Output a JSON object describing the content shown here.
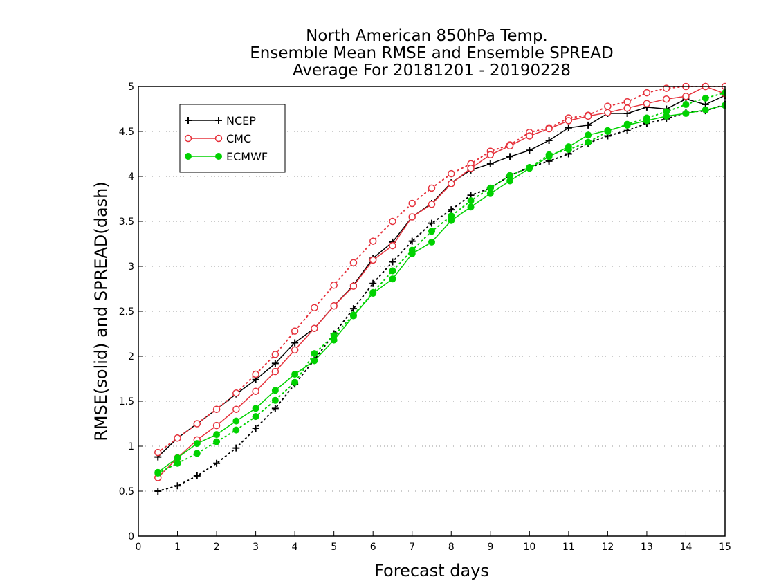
{
  "chart_data": {
    "type": "line",
    "title": [
      "North American 850hPa Temp.",
      "Ensemble Mean RMSE and Ensemble SPREAD",
      "Average For 20181201 - 20190228"
    ],
    "xlabel": "Forecast days",
    "ylabel": "RMSE(solid) and SPREAD(dash)",
    "xlim": [
      0,
      15
    ],
    "ylim": [
      0,
      5
    ],
    "xticks": [
      "0",
      "1",
      "2",
      "3",
      "4",
      "5",
      "6",
      "7",
      "8",
      "9",
      "10",
      "11",
      "12",
      "13",
      "14",
      "15"
    ],
    "yticks": [
      "0",
      "0.5",
      "1",
      "1.5",
      "2",
      "2.5",
      "3",
      "3.5",
      "4",
      "4.5",
      "5"
    ],
    "grid": "horizontal dotted",
    "legend_position": "top-left",
    "x": [
      0.5,
      1,
      1.5,
      2,
      2.5,
      3,
      3.5,
      4,
      4.5,
      5,
      5.5,
      6,
      6.5,
      7,
      7.5,
      8,
      8.5,
      9,
      9.5,
      10,
      10.5,
      11,
      11.5,
      12,
      12.5,
      13,
      13.5,
      14,
      14.5,
      15
    ],
    "series": [
      {
        "name": "NCEP",
        "color": "#000000",
        "marker": "plus",
        "rmse": [
          0.88,
          1.09,
          1.25,
          1.41,
          1.58,
          1.74,
          1.92,
          2.15,
          2.31,
          2.56,
          2.79,
          3.09,
          3.27,
          3.55,
          3.7,
          3.93,
          4.07,
          4.14,
          4.22,
          4.29,
          4.4,
          4.54,
          4.57,
          4.7,
          4.7,
          4.77,
          4.75,
          4.86,
          4.8,
          4.9
        ],
        "spread": [
          0.5,
          0.56,
          0.67,
          0.81,
          0.98,
          1.2,
          1.42,
          1.69,
          1.96,
          2.25,
          2.53,
          2.81,
          3.05,
          3.28,
          3.48,
          3.63,
          3.79,
          3.87,
          4.01,
          4.1,
          4.17,
          4.25,
          4.37,
          4.45,
          4.51,
          4.59,
          4.64,
          4.71,
          4.73,
          4.8
        ]
      },
      {
        "name": "CMC",
        "color": "#e6323c",
        "marker": "circle",
        "rmse": [
          0.65,
          0.87,
          1.07,
          1.23,
          1.41,
          1.61,
          1.83,
          2.07,
          2.31,
          2.56,
          2.78,
          3.07,
          3.23,
          3.55,
          3.69,
          3.92,
          4.09,
          4.24,
          4.34,
          4.45,
          4.53,
          4.62,
          4.67,
          4.71,
          4.76,
          4.81,
          4.86,
          4.89,
          5.0,
          4.92
        ],
        "spread": [
          0.93,
          1.09,
          1.25,
          1.41,
          1.59,
          1.8,
          2.02,
          2.28,
          2.54,
          2.79,
          3.04,
          3.28,
          3.5,
          3.7,
          3.87,
          4.03,
          4.14,
          4.28,
          4.35,
          4.49,
          4.54,
          4.65,
          4.68,
          4.78,
          4.83,
          4.93,
          4.98,
          5.0,
          5.0,
          5.0
        ]
      },
      {
        "name": "ECMWF",
        "color": "#00d200",
        "marker": "dot",
        "rmse": [
          0.71,
          0.87,
          1.03,
          1.13,
          1.28,
          1.42,
          1.62,
          1.8,
          1.95,
          2.18,
          2.45,
          2.7,
          2.86,
          3.14,
          3.27,
          3.51,
          3.66,
          3.81,
          3.95,
          4.09,
          4.22,
          4.33,
          4.46,
          4.51,
          4.57,
          4.62,
          4.67,
          4.7,
          4.74,
          4.79
        ],
        "spread": [
          0.7,
          0.81,
          0.92,
          1.05,
          1.18,
          1.33,
          1.51,
          1.71,
          2.03,
          2.23,
          2.46,
          2.71,
          2.95,
          3.18,
          3.39,
          3.56,
          3.73,
          3.87,
          4.01,
          4.1,
          4.24,
          4.3,
          4.38,
          4.5,
          4.58,
          4.65,
          4.72,
          4.8,
          4.87,
          4.93
        ]
      }
    ]
  }
}
